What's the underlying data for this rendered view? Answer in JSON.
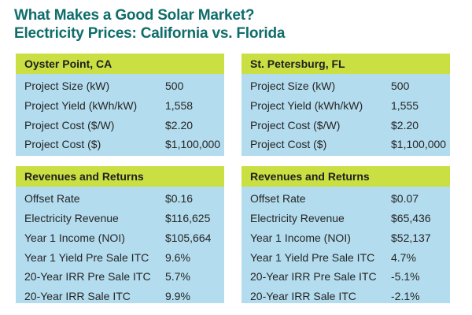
{
  "title": {
    "line1": "What Makes a Good Solar Market?",
    "line2": "Electricity Prices: California vs. Florida"
  },
  "colors": {
    "title": "#0f6d6a",
    "header_bg": "#c9df42",
    "panel_bg": "#b3dcee"
  },
  "panels": [
    {
      "location": "Oyster Point, CA",
      "project": [
        {
          "label": "Project Size (kW)",
          "value": "500"
        },
        {
          "label": "Project Yield (kWh/kW)",
          "value": "1,558"
        },
        {
          "label": "Project Cost ($/W)",
          "value": "$2.20"
        },
        {
          "label": "Project Cost ($)",
          "value": "$1,100,000"
        }
      ],
      "revenues_header": "Revenues and Returns",
      "revenues": [
        {
          "label": "Offset Rate",
          "value": "$0.16"
        },
        {
          "label": "Electricity Revenue",
          "value": "$116,625"
        },
        {
          "label": "Year 1 Income (NOI)",
          "value": "$105,664"
        },
        {
          "label": "Year 1 Yield Pre Sale ITC",
          "value": "9.6%"
        },
        {
          "label": "20-Year IRR Pre Sale ITC",
          "value": "5.7%"
        },
        {
          "label": "20-Year IRR Sale ITC",
          "value": "9.9%"
        }
      ]
    },
    {
      "location": "St. Petersburg, FL",
      "project": [
        {
          "label": "Project Size (kW)",
          "value": "500"
        },
        {
          "label": "Project Yield (kWh/kW)",
          "value": "1,555"
        },
        {
          "label": "Project Cost ($/W)",
          "value": "$2.20"
        },
        {
          "label": "Project Cost ($)",
          "value": "$1,100,000"
        }
      ],
      "revenues_header": "Revenues and Returns",
      "revenues": [
        {
          "label": "Offset Rate",
          "value": "$0.07"
        },
        {
          "label": "Electricity Revenue",
          "value": "$65,436"
        },
        {
          "label": "Year 1 Income (NOI)",
          "value": "$52,137"
        },
        {
          "label": "Year 1 Yield Pre Sale ITC",
          "value": "4.7%"
        },
        {
          "label": "20-Year IRR Pre Sale ITC",
          "value": "-5.1%"
        },
        {
          "label": "20-Year IRR Sale ITC",
          "value": "-2.1%"
        }
      ]
    }
  ]
}
